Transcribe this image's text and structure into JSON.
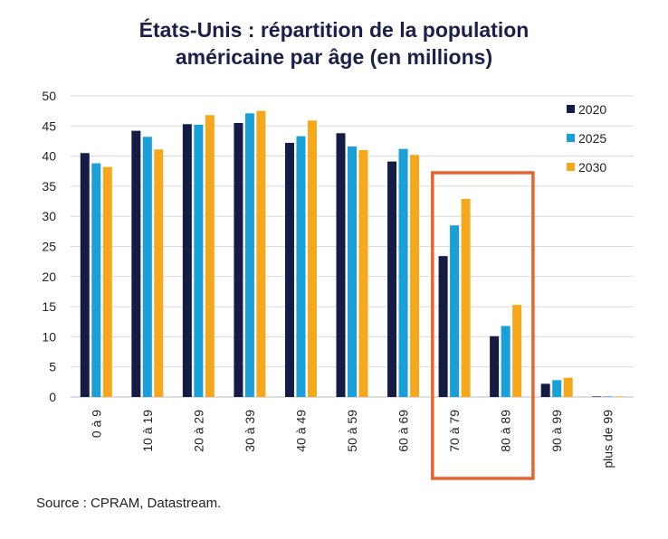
{
  "title_line1": "États-Unis : répartition de la population",
  "title_line2": "américaine par âge (en millions)",
  "source": "Source : CPRAM, Datastream.",
  "colors": {
    "2020": "#141c46",
    "2025": "#1aa0d8",
    "2030": "#f5a81b",
    "highlight": "#e8642a",
    "grid": "#d9d9d9"
  },
  "chart_data": {
    "type": "bar",
    "title": "États-Unis : répartition de la population américaine par âge (en millions)",
    "xlabel": "",
    "ylabel": "",
    "ylim": [
      0,
      50
    ],
    "yticks": [
      0,
      5,
      10,
      15,
      20,
      25,
      30,
      35,
      40,
      45,
      50
    ],
    "categories": [
      "0 à 9",
      "10 à 19",
      "20 à 29",
      "30 à 39",
      "40 à 49",
      "50 à 59",
      "60 à 69",
      "70 à 79",
      "80 à 89",
      "90 à 99",
      "plus de 99"
    ],
    "series": [
      {
        "name": "2020",
        "values": [
          40.5,
          44.2,
          45.3,
          45.5,
          42.2,
          43.8,
          39.1,
          23.4,
          10.1,
          2.2,
          0.1
        ]
      },
      {
        "name": "2025",
        "values": [
          38.8,
          43.2,
          45.2,
          47.1,
          43.3,
          41.6,
          41.2,
          28.5,
          11.8,
          2.8,
          0.1
        ]
      },
      {
        "name": "2030",
        "values": [
          38.2,
          41.1,
          46.8,
          47.5,
          45.9,
          41.0,
          40.2,
          32.9,
          15.3,
          3.2,
          0.1
        ]
      }
    ],
    "legend_position": "top-right",
    "highlighted_categories": [
      "70 à 79",
      "80 à 89"
    ]
  }
}
